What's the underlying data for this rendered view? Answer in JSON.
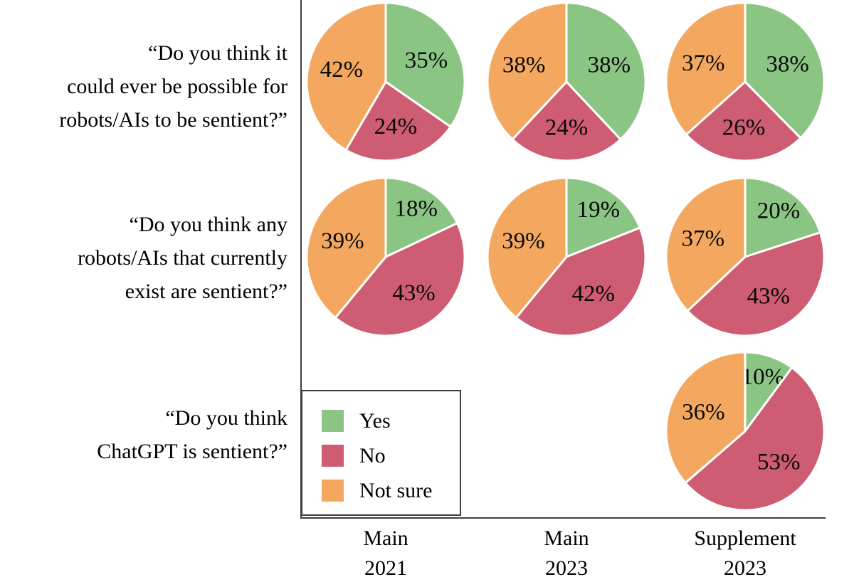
{
  "figure": {
    "background": "#ffffff",
    "axis_color": "#3d3d3d",
    "text_color": "#000000"
  },
  "legend": {
    "items": [
      {
        "label": "Yes",
        "color": "#8bc584"
      },
      {
        "label": "No",
        "color": "#ce5c73"
      },
      {
        "label": "Not sure",
        "color": "#f4a85f"
      }
    ]
  },
  "rows": [
    {
      "lines": [
        "“Do you think it",
        "could ever be possible for",
        "robots/AIs to be sentient?”"
      ]
    },
    {
      "lines": [
        "“Do you think any",
        "robots/AIs that currently",
        "exist are sentient?”"
      ]
    },
    {
      "lines": [
        "“Do you think",
        "ChatGPT is sentient?”"
      ]
    }
  ],
  "columns": [
    {
      "line1": "Main",
      "line2": "2021"
    },
    {
      "line1": "Main",
      "line2": "2023"
    },
    {
      "line1": "Supplement",
      "line2": "2023"
    }
  ],
  "chart_data": [
    {
      "type": "pie",
      "question": "Do you think it could ever be possible for robots/AIs to be sentient?",
      "column": "Main 2021",
      "slices": [
        {
          "label": "Yes",
          "value": 35
        },
        {
          "label": "No",
          "value": 24
        },
        {
          "label": "Not sure",
          "value": 42
        }
      ]
    },
    {
      "type": "pie",
      "question": "Do you think it could ever be possible for robots/AIs to be sentient?",
      "column": "Main 2023",
      "slices": [
        {
          "label": "Yes",
          "value": 38
        },
        {
          "label": "No",
          "value": 24
        },
        {
          "label": "Not sure",
          "value": 38
        }
      ]
    },
    {
      "type": "pie",
      "question": "Do you think it could ever be possible for robots/AIs to be sentient?",
      "column": "Supplement 2023",
      "slices": [
        {
          "label": "Yes",
          "value": 38
        },
        {
          "label": "No",
          "value": 26
        },
        {
          "label": "Not sure",
          "value": 37
        }
      ]
    },
    {
      "type": "pie",
      "question": "Do you think any robots/AIs that currently exist are sentient?",
      "column": "Main 2021",
      "slices": [
        {
          "label": "Yes",
          "value": 18
        },
        {
          "label": "No",
          "value": 43
        },
        {
          "label": "Not sure",
          "value": 39
        }
      ]
    },
    {
      "type": "pie",
      "question": "Do you think any robots/AIs that currently exist are sentient?",
      "column": "Main 2023",
      "slices": [
        {
          "label": "Yes",
          "value": 19
        },
        {
          "label": "No",
          "value": 42
        },
        {
          "label": "Not sure",
          "value": 39
        }
      ]
    },
    {
      "type": "pie",
      "question": "Do you think any robots/AIs that currently exist are sentient?",
      "column": "Supplement 2023",
      "slices": [
        {
          "label": "Yes",
          "value": 20
        },
        {
          "label": "No",
          "value": 43
        },
        {
          "label": "Not sure",
          "value": 37
        }
      ]
    },
    {
      "type": "pie",
      "question": "Do you think ChatGPT is sentient?",
      "column": "Supplement 2023",
      "slices": [
        {
          "label": "Yes",
          "value": 10
        },
        {
          "label": "No",
          "value": 53
        },
        {
          "label": "Not sure",
          "value": 36
        }
      ]
    }
  ]
}
